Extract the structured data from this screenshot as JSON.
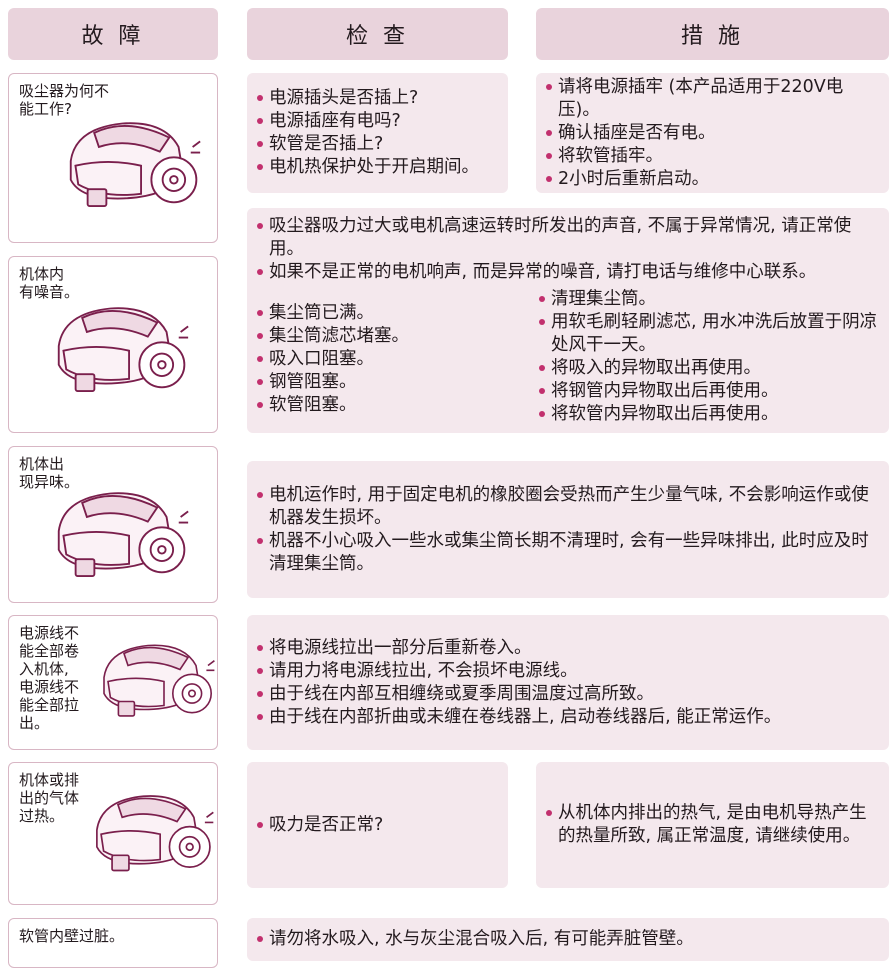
{
  "header": [
    "故 障",
    "检 查",
    "措 施"
  ],
  "rows": [
    {
      "fault": [
        "吸尘器为何不",
        "能工作?"
      ],
      "checks": [
        "电源插头是否插上?",
        "电源插座有电吗?",
        "软管是否插上?",
        "电机热保护处于开启期间。"
      ],
      "measures": [
        "请将电源插牢 (本产品适用于220V电压)。",
        "确认插座是否有电。",
        "将软管插牢。",
        "2小时后重新启动。"
      ]
    },
    {
      "fault": [
        "机体内",
        "有噪音。"
      ],
      "notes": [
        "吸尘器吸力过大或电机高速运转时所发出的声音, 不属于异常情况, 请正常使用。",
        "如果不是正常的电机响声, 而是异常的噪音, 请打电话与维修中心联系。"
      ],
      "checks": [
        "集尘筒已满。",
        "集尘筒滤芯堵塞。",
        "吸入口阻塞。",
        "钢管阻塞。",
        "软管阻塞。"
      ],
      "measures": [
        "清理集尘筒。",
        "用软毛刷轻刷滤芯, 用水冲洗后放置于阴凉处风干一天。",
        "将吸入的异物取出再使用。",
        "将钢管内异物取出后再使用。",
        "将软管内异物取出后再使用。"
      ]
    },
    {
      "fault": [
        "机体出",
        "现异味。"
      ],
      "notes": [
        "电机运作时, 用于固定电机的橡胶圈会受热而产生少量气味, 不会影响运作或使机器发生损坏。",
        "机器不小心吸入一些水或集尘筒长期不清理时, 会有一些异味排出, 此时应及时清理集尘筒。"
      ]
    },
    {
      "fault": [
        "电源线不",
        "能全部卷",
        "入机体,",
        "电源线不",
        "能全部拉",
        "出。"
      ],
      "notes": [
        "将电源线拉出一部分后重新卷入。",
        "请用力将电源线拉出, 不会损坏电源线。",
        "由于线在内部互相缠绕或夏季周围温度过高所致。",
        "由于线在内部折曲或未缠在卷线器上, 启动卷线器后, 能正常运作。"
      ]
    },
    {
      "fault": [
        "机体或排",
        "出的气体",
        "过热。"
      ],
      "checks": [
        "吸力是否正常?"
      ],
      "measures": [
        "从机体内排出的热气, 是由电机导热产生的热量所致, 属正常温度, 请继续使用。"
      ]
    },
    {
      "fault": [
        "软管内壁过脏。"
      ],
      "notes": [
        "请勿将水吸入, 水与灰尘混合吸入后, 有可能弄脏管壁。"
      ]
    }
  ]
}
